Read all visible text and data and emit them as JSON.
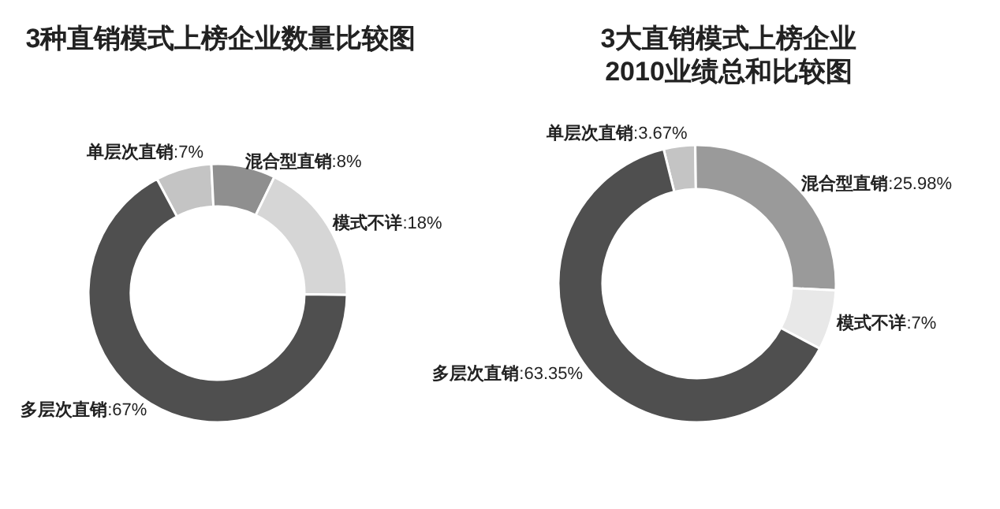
{
  "chart_data": [
    {
      "type": "donut",
      "title": "3种直销模式上榜企业数量比较图",
      "categories": [
        "单层次直销",
        "混合型直销",
        "模式不详",
        "多层次直销"
      ],
      "values": [
        7,
        8,
        18,
        67
      ],
      "value_labels": [
        ":7%",
        ":8%",
        ":18%",
        ":67%"
      ],
      "colors": [
        "#c4c4c4",
        "#8f8f8f",
        "#d6d6d6",
        "#4f4f4f"
      ]
    },
    {
      "type": "donut",
      "title": "3大直销模式上榜企业\n2010业绩总和比较图",
      "categories": [
        "单层次直销",
        "混合型直销",
        "模式不详",
        "多层次直销"
      ],
      "values": [
        3.67,
        25.98,
        7,
        63.35
      ],
      "value_labels": [
        ":3.67%",
        ":25.98%",
        ":7%",
        ":63.35%"
      ],
      "colors": [
        "#c4c4c4",
        "#9a9a9a",
        "#e8e8e8",
        "#4f4f4f"
      ]
    }
  ]
}
